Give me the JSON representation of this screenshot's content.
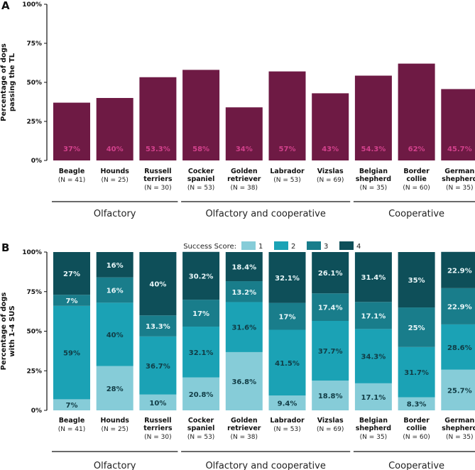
{
  "panel_a": {
    "letter": "A"
  },
  "panel_b": {
    "letter": "B"
  },
  "legend": {
    "title": "Success Score:",
    "items": [
      "1",
      "2",
      "3",
      "4"
    ]
  },
  "groups": [
    "Olfactory",
    "Olfactory and cooperative",
    "Cooperative"
  ],
  "colors": {
    "bar_a": "#6e1a44",
    "label_a": "#d2418c",
    "score1": "#86ccd8",
    "score2": "#1ba2b5",
    "score3": "#197d8b",
    "score4": "#0e4f59"
  },
  "chart_data": [
    {
      "type": "bar",
      "title": "",
      "ylabel": "Percentage of dogs passing the TL",
      "ylim": [
        0,
        100
      ],
      "yticks": [
        "0%",
        "25%",
        "50%",
        "75%",
        "100%"
      ],
      "categories": [
        "Beagle",
        "Hounds",
        "Russell terriers",
        "Cocker spaniel",
        "Golden retriever",
        "Labrador",
        "Vizslas",
        "Belgian shepherd",
        "Border collie",
        "German shepherd"
      ],
      "category_lines": [
        [
          "Beagle"
        ],
        [
          "Hounds"
        ],
        [
          "Russell",
          "terriers"
        ],
        [
          "Cocker",
          "spaniel"
        ],
        [
          "Golden",
          "retriever"
        ],
        [
          "Labrador"
        ],
        [
          "Vizslas"
        ],
        [
          "Belgian",
          "shepherd"
        ],
        [
          "Border",
          "collie"
        ],
        [
          "German",
          "shepherd"
        ]
      ],
      "n_labels": [
        "(N = 41)",
        "(N = 25)",
        "(N = 30)",
        "(N = 53)",
        "(N = 38)",
        "(N = 53)",
        "(N = 69)",
        "(N = 35)",
        "(N = 60)",
        "(N = 35)"
      ],
      "values": [
        37,
        40,
        53.3,
        58,
        34,
        57,
        43,
        54.3,
        62,
        45.7
      ],
      "value_labels": [
        "37%",
        "40%",
        "53.3%",
        "58%",
        "34%",
        "57%",
        "43%",
        "54.3%",
        "62%",
        "45.7%"
      ]
    },
    {
      "type": "bar",
      "stacked": true,
      "title": "",
      "ylabel": "Percentage of dogs with 1-4 SUS",
      "ylim": [
        0,
        100
      ],
      "yticks": [
        "0%",
        "25%",
        "50%",
        "75%",
        "100%"
      ],
      "categories": [
        "Beagle",
        "Hounds",
        "Russell terriers",
        "Cocker spaniel",
        "Golden retriever",
        "Labrador",
        "Vizslas",
        "Belgian shepherd",
        "Border collie",
        "German shepherd"
      ],
      "series": [
        {
          "name": "1",
          "values": [
            7,
            28,
            10,
            20.8,
            36.8,
            9.4,
            18.8,
            17.1,
            8.3,
            25.7
          ],
          "labels": [
            "7%",
            "28%",
            "10%",
            "20.8%",
            "36.8%",
            "9.4%",
            "18.8%",
            "17.1%",
            "8.3%",
            "25.7%"
          ]
        },
        {
          "name": "2",
          "values": [
            59,
            40,
            36.7,
            32.1,
            31.6,
            41.5,
            37.7,
            34.3,
            31.7,
            28.6
          ],
          "labels": [
            "59%",
            "40%",
            "36.7%",
            "32.1%",
            "31.6%",
            "41.5%",
            "37.7%",
            "34.3%",
            "31.7%",
            "28.6%"
          ]
        },
        {
          "name": "3",
          "values": [
            7,
            16,
            13.3,
            17,
            13.2,
            17,
            17.4,
            17.1,
            25,
            22.9
          ],
          "labels": [
            "7%",
            "16%",
            "13.3%",
            "17%",
            "13.2%",
            "17%",
            "17.4%",
            "17.1%",
            "25%",
            "22.9%"
          ]
        },
        {
          "name": "4",
          "values": [
            27,
            16,
            40,
            30.2,
            18.4,
            32.1,
            26.1,
            31.4,
            35,
            22.9
          ],
          "labels": [
            "27%",
            "16%",
            "40%",
            "30.2%",
            "18.4%",
            "32.1%",
            "26.1%",
            "31.4%",
            "35%",
            "22.9%"
          ]
        }
      ]
    }
  ]
}
